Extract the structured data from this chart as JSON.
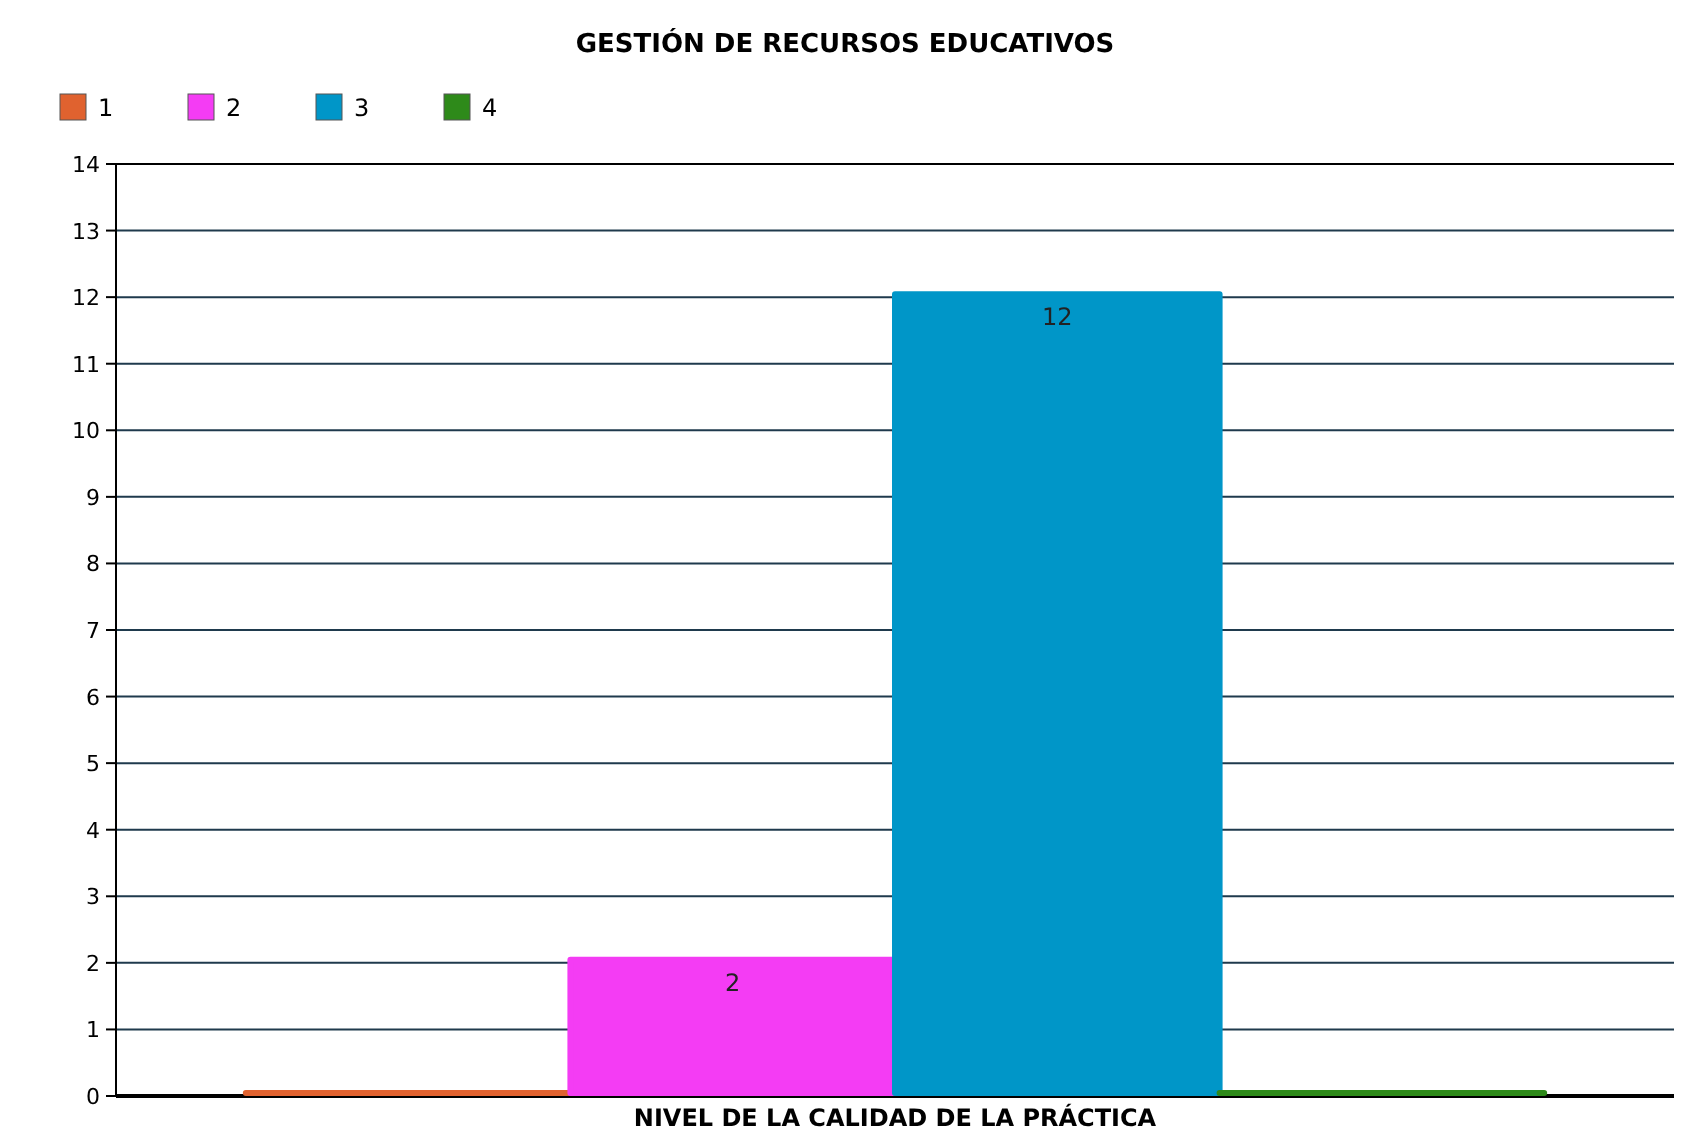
{
  "chart_data": {
    "type": "bar",
    "title": "GESTIÓN DE RECURSOS EDUCATIVOS",
    "xlabel": "NIVEL DE LA CALIDAD DE LA PRÁCTICA",
    "categories": [
      null
    ],
    "series": [
      {
        "name": "1",
        "color": "#e0622f",
        "values": [
          0
        ],
        "value_labels": [
          null
        ]
      },
      {
        "name": "2",
        "color": "#f43cf4",
        "values": [
          2
        ],
        "value_labels": [
          "2"
        ]
      },
      {
        "name": "3",
        "color": "#0096c8",
        "values": [
          12
        ],
        "value_labels": [
          "12"
        ]
      },
      {
        "name": "4",
        "color": "#2e8a1a",
        "values": [
          0
        ],
        "value_labels": [
          null
        ]
      }
    ],
    "ylim": [
      0,
      14
    ],
    "yticks": [
      0,
      1,
      2,
      3,
      4,
      5,
      6,
      7,
      8,
      9,
      10,
      11,
      12,
      13,
      14
    ],
    "grid": "y",
    "legend": "top left"
  }
}
